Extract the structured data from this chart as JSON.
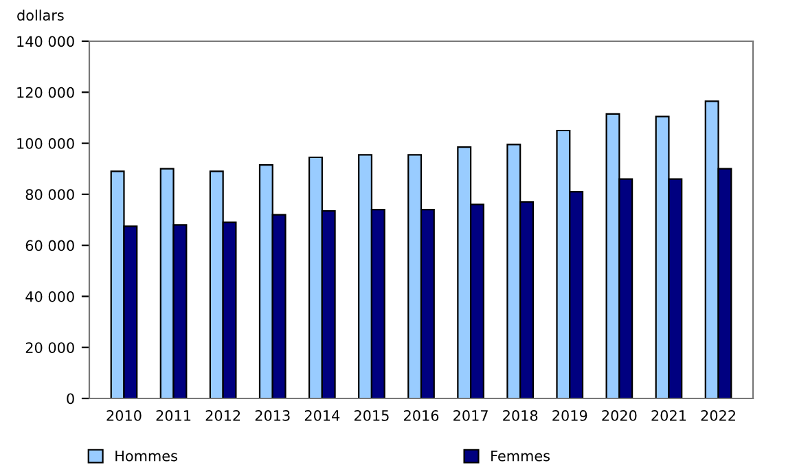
{
  "chart_data": {
    "type": "bar",
    "ylabel": "dollars",
    "categories": [
      "2010",
      "2011",
      "2012",
      "2013",
      "2014",
      "2015",
      "2016",
      "2017",
      "2018",
      "2019",
      "2020",
      "2021",
      "2022"
    ],
    "series": [
      {
        "name": "Hommes",
        "color": "#99ccff",
        "values": [
          89000,
          90000,
          89000,
          91500,
          94500,
          95500,
          95500,
          98500,
          99500,
          105000,
          111500,
          110500,
          116500
        ]
      },
      {
        "name": "Femmes",
        "color": "#000080",
        "values": [
          67500,
          68000,
          69000,
          72000,
          73500,
          74000,
          74000,
          76000,
          77000,
          81000,
          86000,
          86000,
          90000
        ]
      }
    ],
    "ylim": [
      0,
      140000
    ],
    "yticks": [
      {
        "value": 0,
        "label": "0"
      },
      {
        "value": 20000,
        "label": "20 000"
      },
      {
        "value": 40000,
        "label": "40 000"
      },
      {
        "value": 60000,
        "label": "60 000"
      },
      {
        "value": 80000,
        "label": "80 000"
      },
      {
        "value": 100000,
        "label": "100 000"
      },
      {
        "value": 120000,
        "label": "120 000"
      },
      {
        "value": 140000,
        "label": "140 000"
      }
    ],
    "grid": false,
    "legend": "bottom"
  }
}
